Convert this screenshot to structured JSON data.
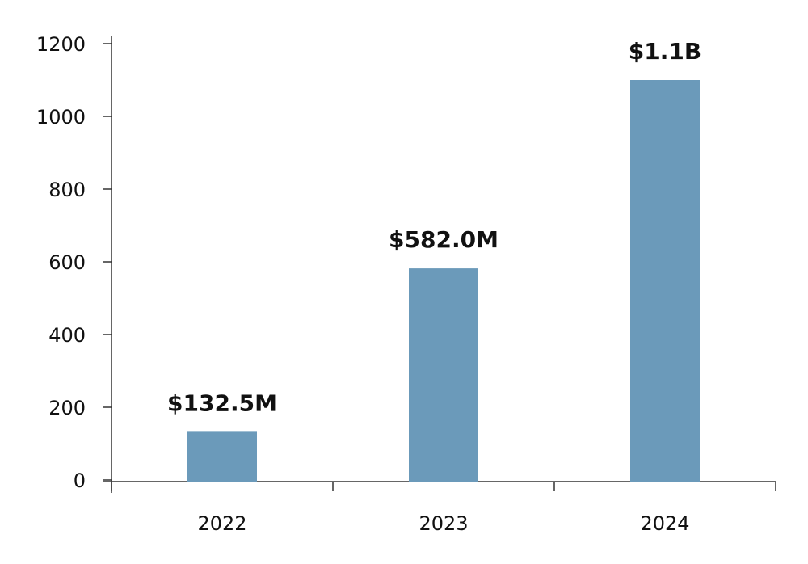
{
  "chart_data": {
    "type": "bar",
    "categories": [
      "2022",
      "2023",
      "2024"
    ],
    "values": [
      132.5,
      582.0,
      1100
    ],
    "data_labels": [
      "$132.5M",
      "$582.0M",
      "$1.1B"
    ],
    "title": "",
    "xlabel": "",
    "ylabel": "",
    "ylim": [
      0,
      1200
    ],
    "yticks": [
      0,
      200,
      400,
      600,
      800,
      1000,
      1200
    ],
    "grid": false,
    "legend": "none",
    "bar_color": "#6b9aba"
  }
}
